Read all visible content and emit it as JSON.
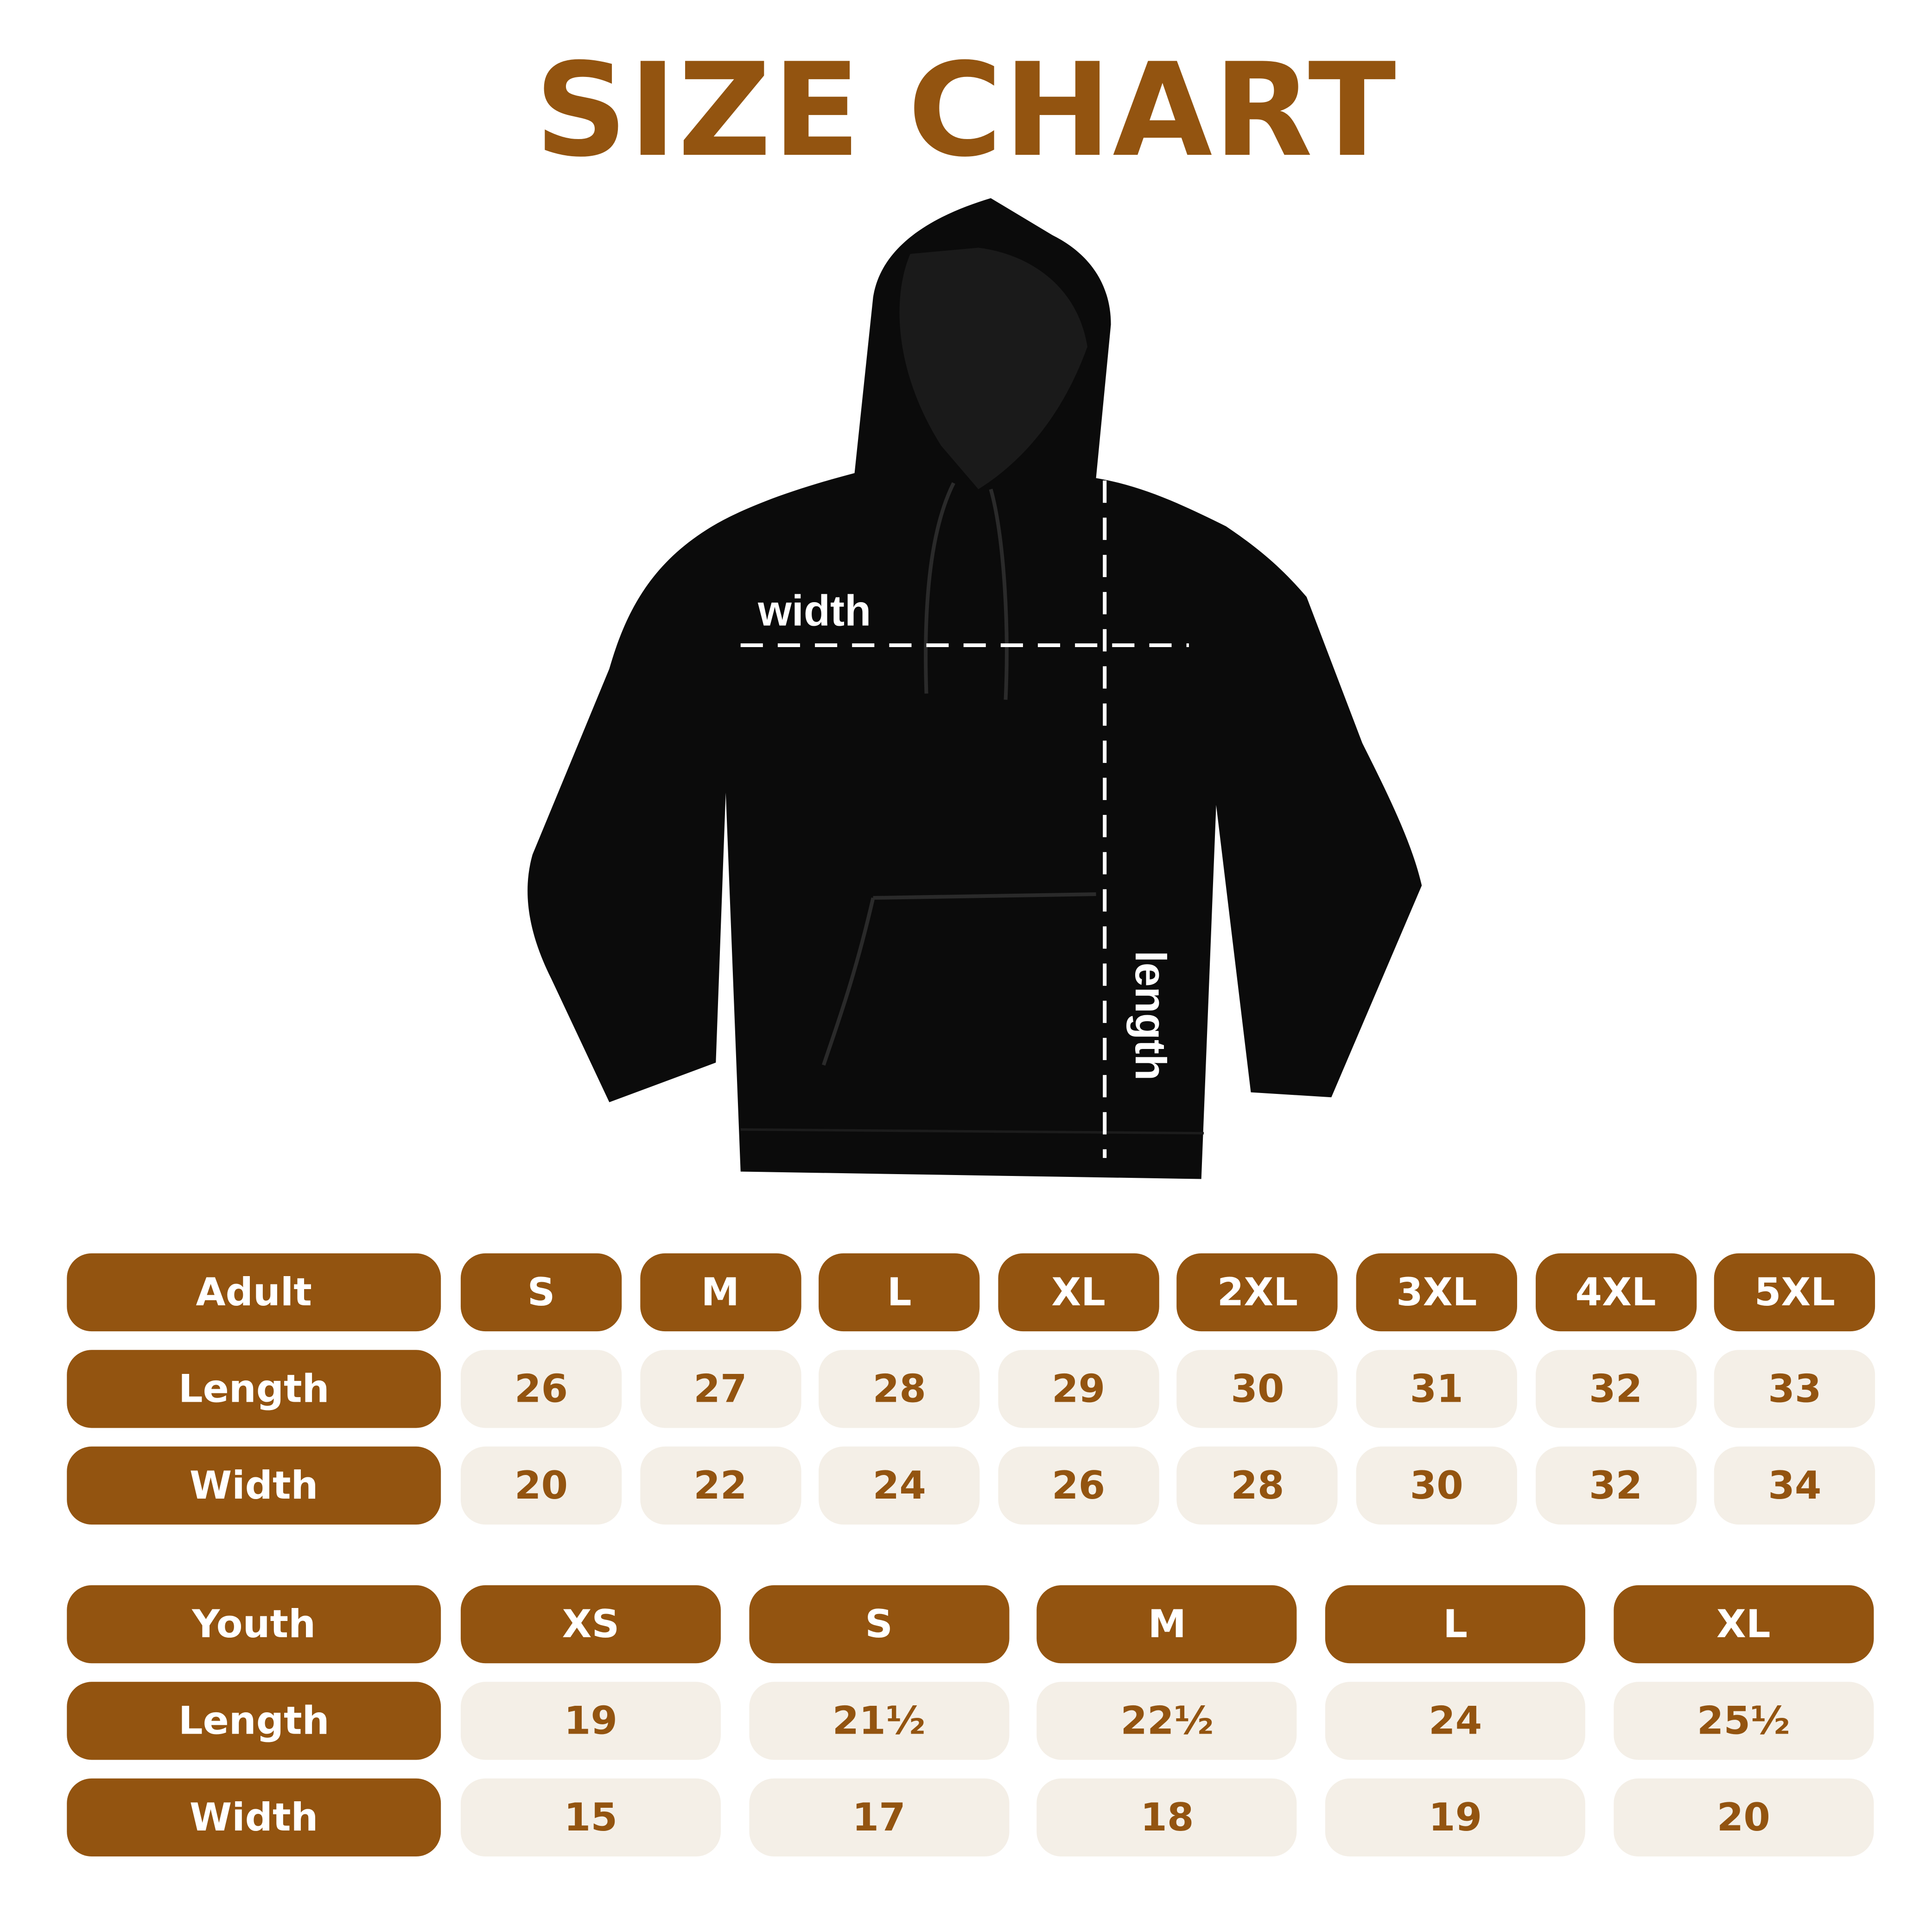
{
  "title": "SIZE CHART",
  "colors": {
    "brand": "#935410",
    "cell_bg": "#f4efe7",
    "garment": "#0b0b0b"
  },
  "diagram": {
    "width_label": "width",
    "length_label": "length"
  },
  "adult": {
    "header": "Adult",
    "sizes": [
      "S",
      "M",
      "L",
      "XL",
      "2XL",
      "3XL",
      "4XL",
      "5XL"
    ],
    "rows": [
      {
        "label": "Length",
        "values": [
          "26",
          "27",
          "28",
          "29",
          "30",
          "31",
          "32",
          "33"
        ]
      },
      {
        "label": "Width",
        "values": [
          "20",
          "22",
          "24",
          "26",
          "28",
          "30",
          "32",
          "34"
        ]
      }
    ]
  },
  "youth": {
    "header": "Youth",
    "sizes": [
      "XS",
      "S",
      "M",
      "L",
      "XL"
    ],
    "rows": [
      {
        "label": "Length",
        "values": [
          "19",
          "21½",
          "22½",
          "24",
          "25½"
        ]
      },
      {
        "label": "Width",
        "values": [
          "15",
          "17",
          "18",
          "19",
          "20"
        ]
      }
    ]
  }
}
